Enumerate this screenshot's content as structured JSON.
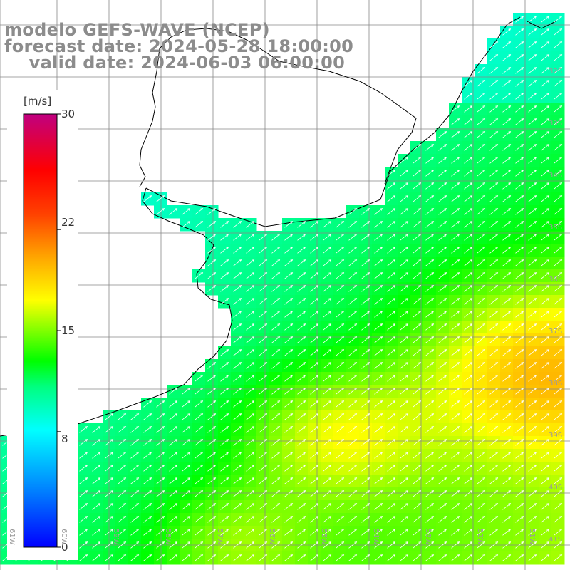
{
  "title": {
    "line1": "modelo GEFS-WAVE (NCEP)",
    "line2": "forecast date: 2024-05-28 18:00:00",
    "line3": "    valid date: 2024-06-03 06:00:00"
  },
  "colorbar": {
    "unit": "[m/s]",
    "min": 0,
    "max": 30,
    "ticks": [
      "0",
      "8",
      "15",
      "22",
      "30"
    ],
    "tick_values": [
      0,
      8,
      15,
      22,
      30
    ],
    "colors": [
      "#0000ff",
      "#00a0ff",
      "#00ffff",
      "#00ff7f",
      "#00ff00",
      "#7fff00",
      "#ffff00",
      "#ffa500",
      "#ff4500",
      "#ff0000",
      "#ff0040",
      "#c00080"
    ]
  },
  "lat_labels": [
    "32S",
    "33S",
    "34S",
    "35S",
    "36S",
    "37S",
    "38S",
    "39S",
    "40S",
    "41S"
  ],
  "lon_labels": [
    "61W",
    "60W",
    "59W",
    "58W",
    "57W",
    "56W",
    "55W",
    "54W",
    "53W",
    "52W",
    "51W"
  ],
  "colors": {
    "land": "#ffffff",
    "coast": "#000000",
    "grid": "#888888",
    "arrow": "#ffffff",
    "title": "#8c8c8c"
  }
}
